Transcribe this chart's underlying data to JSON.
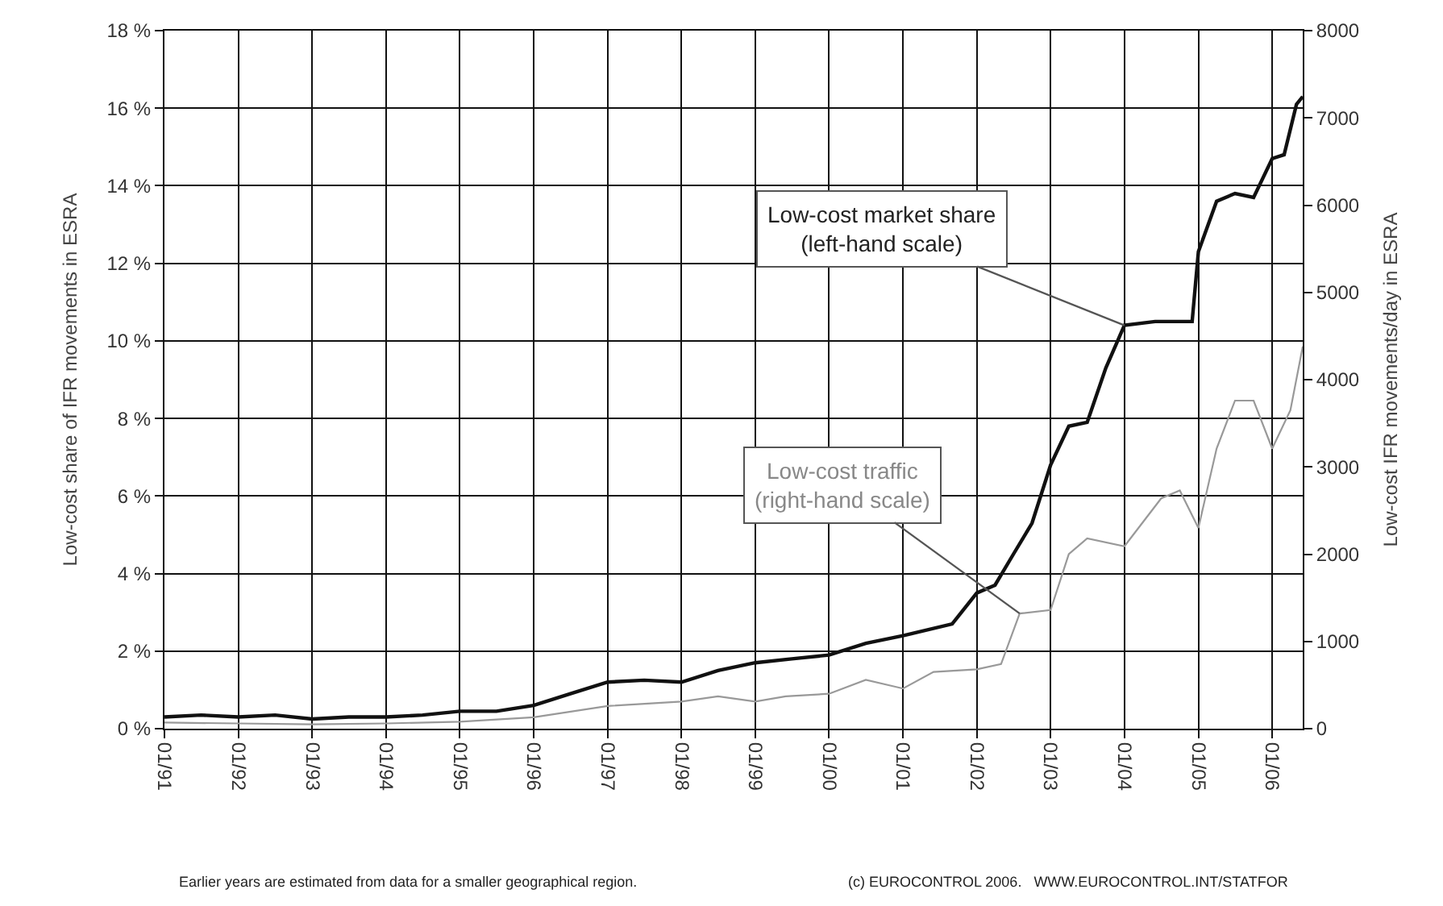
{
  "chart_data": {
    "type": "line",
    "ylabel": "Low-cost share of IFR movements in ESRA",
    "y2label": "Low-cost IFR movements/day in ESRA",
    "series": [
      {
        "color": "#111111",
        "x": [
          "1991-01",
          "1991-07",
          "1992-01",
          "1992-07",
          "1993-01",
          "1993-07",
          "1994-01",
          "1994-07",
          "1995-01",
          "1995-07",
          "1996-01",
          "1996-07",
          "1997-01",
          "1997-07",
          "1998-01",
          "1998-07",
          "1999-01",
          "1999-07",
          "2000-01",
          "2000-07",
          "2001-01",
          "2001-09",
          "2002-01",
          "2002-04",
          "2002-07",
          "2002-10",
          "2003-01",
          "2003-04",
          "2003-07",
          "2003-10",
          "2004-01",
          "2004-06",
          "2004-12",
          "2005-01",
          "2005-04",
          "2005-07",
          "2005-10",
          "2006-01",
          "2006-03",
          "2006-05",
          "2006-06"
        ],
        "values": [
          0.3,
          0.35,
          0.3,
          0.35,
          0.25,
          0.3,
          0.3,
          0.35,
          0.45,
          0.45,
          0.6,
          0.9,
          1.2,
          1.25,
          1.2,
          1.5,
          1.7,
          1.8,
          1.9,
          2.2,
          2.4,
          2.7,
          3.5,
          3.7,
          4.5,
          5.3,
          6.8,
          7.8,
          7.9,
          9.3,
          10.4,
          10.5,
          10.5,
          12.3,
          13.6,
          13.8,
          13.7,
          14.7,
          14.8,
          16.1,
          16.3
        ]
      },
      {
        "color": "#999999",
        "axis": "y2",
        "x": [
          "1991-01",
          "1992-01",
          "1993-01",
          "1994-01",
          "1995-01",
          "1996-01",
          "1997-01",
          "1998-01",
          "1998-07",
          "1999-01",
          "1999-06",
          "2000-01",
          "2000-07",
          "2001-01",
          "2001-06",
          "2002-01",
          "2002-05",
          "2002-08",
          "2003-01",
          "2003-04",
          "2003-07",
          "2004-01",
          "2004-07",
          "2004-10",
          "2005-01",
          "2005-04",
          "2005-07",
          "2005-10",
          "2006-01",
          "2006-04",
          "2006-06"
        ],
        "values": [
          70,
          60,
          50,
          60,
          80,
          130,
          260,
          310,
          370,
          310,
          370,
          400,
          560,
          460,
          650,
          680,
          740,
          1320,
          1360,
          2000,
          2180,
          2090,
          2640,
          2730,
          2300,
          3210,
          3760,
          3760,
          3210,
          3650,
          4380
        ]
      }
    ],
    "xlim": [
      "1991-01",
      "2006-06"
    ],
    "xticks": [
      {
        "value": "1991-01",
        "label": "01/91"
      },
      {
        "value": "1992-01",
        "label": "01/92"
      },
      {
        "value": "1993-01",
        "label": "01/93"
      },
      {
        "value": "1994-01",
        "label": "01/94"
      },
      {
        "value": "1995-01",
        "label": "01/95"
      },
      {
        "value": "1996-01",
        "label": "01/96"
      },
      {
        "value": "1997-01",
        "label": "01/97"
      },
      {
        "value": "1998-01",
        "label": "01/98"
      },
      {
        "value": "1999-01",
        "label": "01/99"
      },
      {
        "value": "2000-01",
        "label": "01/00"
      },
      {
        "value": "2001-01",
        "label": "01/01"
      },
      {
        "value": "2002-01",
        "label": "01/02"
      },
      {
        "value": "2003-01",
        "label": "01/03"
      },
      {
        "value": "2004-01",
        "label": "01/04"
      },
      {
        "value": "2005-01",
        "label": "01/05"
      },
      {
        "value": "2006-01",
        "label": "01/06"
      }
    ],
    "ylim": [
      0,
      18
    ],
    "yticks": [
      {
        "value": 0,
        "label": "0 %"
      },
      {
        "value": 2,
        "label": "2 %"
      },
      {
        "value": 4,
        "label": "4 %"
      },
      {
        "value": 6,
        "label": "6 %"
      },
      {
        "value": 8,
        "label": "8 %"
      },
      {
        "value": 10,
        "label": "10 %"
      },
      {
        "value": 12,
        "label": "12 %"
      },
      {
        "value": 14,
        "label": "14 %"
      },
      {
        "value": 16,
        "label": "16 %"
      },
      {
        "value": 18,
        "label": "18 %"
      }
    ],
    "y2lim": [
      0,
      8000
    ],
    "y2ticks": [
      0,
      1000,
      2000,
      3000,
      4000,
      5000,
      6000,
      7000,
      8000
    ],
    "grid": true,
    "annotations": [
      {
        "text": "Low-cost market share\n(left-hand scale)",
        "x": "2004-01",
        "y": 10.4
      },
      {
        "text": "Low-cost traffic\n(right-hand scale)",
        "x": "2002-08",
        "y": 2.97
      },
      "Earlier years are estimated from data for a smaller geographical region.",
      "(c) EUROCONTROL 2006.   WWW.EUROCONTROL.INT/STATFOR"
    ]
  }
}
